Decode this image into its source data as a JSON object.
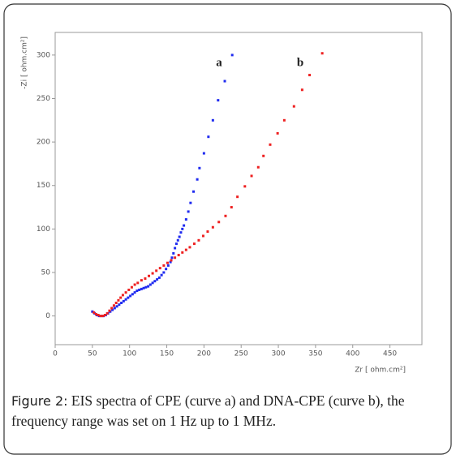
{
  "chart_data": {
    "type": "scatter",
    "xlabel": "Zr [ ohm.cm²]",
    "ylabel": "-Zi [ ohm.cm²]",
    "annotations": [
      "a",
      "b"
    ],
    "caption_label": "Figure 2:",
    "caption": "EIS spectra of CPE (curve a) and DNA-CPE (curve b), the frequency range was set on 1 Hz up to 1 MHz.",
    "xlim": [
      0,
      493
    ],
    "ylim": [
      -33,
      326
    ],
    "xticks": [
      0,
      50,
      100,
      150,
      200,
      250,
      300,
      350,
      400,
      450
    ],
    "yticks": [
      0,
      50,
      100,
      150,
      200,
      250,
      300
    ],
    "grid": false,
    "series": [
      {
        "color": "#1f2bf0",
        "x": [
          50,
          53,
          56,
          59,
          62,
          65,
          68,
          71,
          74,
          77,
          80,
          83,
          86,
          89,
          92,
          95,
          98,
          101,
          104,
          107,
          110,
          113,
          116,
          119,
          122,
          125,
          128,
          131,
          134,
          137,
          140,
          143,
          146,
          149,
          152,
          155,
          157,
          159,
          161,
          163,
          165,
          167,
          169,
          171,
          173,
          176,
          179,
          182,
          186,
          191,
          194,
          200,
          206,
          212,
          219,
          228,
          238
        ],
        "values": [
          5,
          3,
          1,
          0,
          0,
          0,
          1,
          3,
          5,
          7,
          9,
          11,
          13,
          15,
          17,
          19,
          21,
          23,
          25,
          27,
          29,
          30,
          31,
          32,
          33,
          34,
          36,
          38,
          40,
          42,
          44,
          47,
          50,
          54,
          58,
          62,
          67,
          72,
          78,
          83,
          87,
          91,
          96,
          100,
          104,
          111,
          120,
          130,
          143,
          157,
          170,
          187,
          206,
          225,
          248,
          270,
          300
        ]
      },
      {
        "color": "#ee2020",
        "x": [
          52,
          55,
          58,
          61,
          64,
          67,
          70,
          73,
          76,
          79,
          82,
          85,
          88,
          91,
          95,
          99,
          103,
          107,
          111,
          116,
          121,
          126,
          131,
          136,
          141,
          146,
          151,
          156,
          161,
          166,
          171,
          176,
          181,
          187,
          193,
          199,
          205,
          212,
          220,
          229,
          237,
          245,
          255,
          264,
          273,
          280,
          289,
          299,
          308,
          321,
          332,
          342,
          359
        ],
        "values": [
          4,
          2,
          1,
          0,
          0,
          1,
          3,
          6,
          9,
          12,
          15,
          18,
          21,
          24,
          27,
          30,
          33,
          36,
          38,
          41,
          43,
          46,
          49,
          52,
          55,
          58,
          61,
          64,
          67,
          70,
          73,
          76,
          79,
          83,
          87,
          92,
          97,
          102,
          108,
          115,
          125,
          137,
          149,
          161,
          171,
          184,
          197,
          210,
          225,
          241,
          260,
          277,
          302
        ]
      }
    ]
  }
}
